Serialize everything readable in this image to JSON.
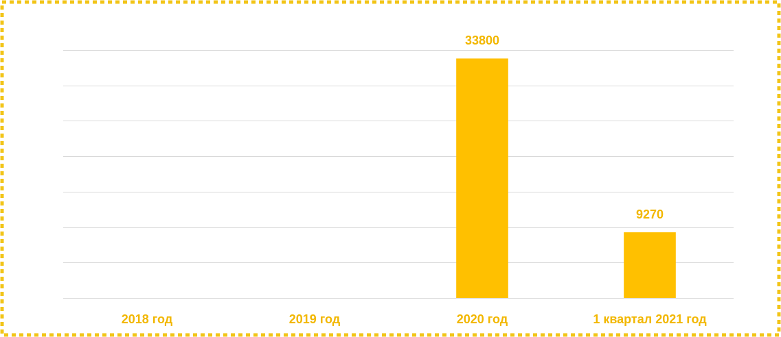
{
  "chart_data": {
    "type": "bar",
    "categories": [
      "2018 год",
      "2019 год",
      "2020 год",
      "1 квартал 2021 год"
    ],
    "values": [
      null,
      null,
      33800,
      9270
    ],
    "color": "#ffc000",
    "ylim": [
      0,
      35000
    ],
    "yticks": [
      0,
      5000,
      10000,
      15000,
      20000,
      25000,
      30000,
      35000
    ],
    "grid": true
  }
}
